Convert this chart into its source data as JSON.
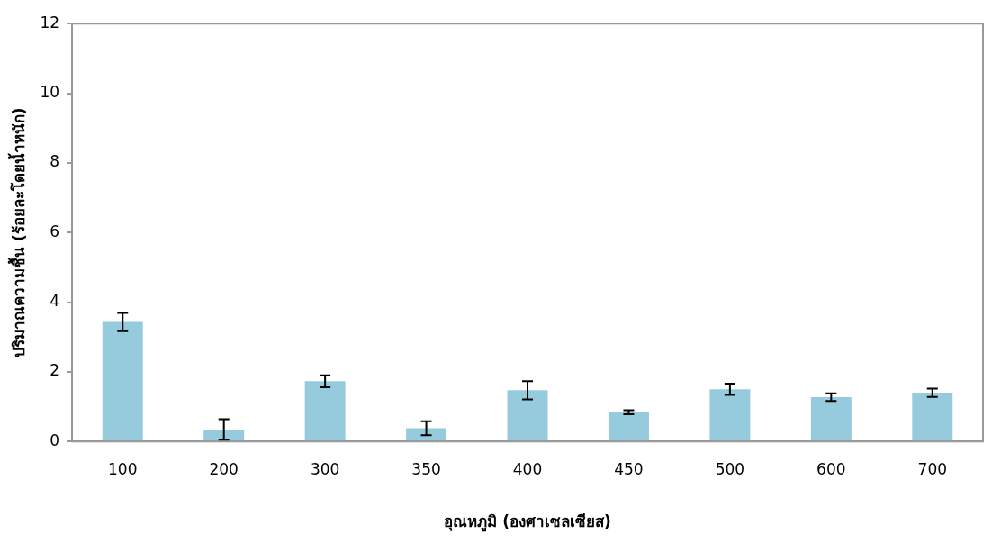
{
  "chart_data": {
    "type": "bar",
    "xlabel": "อุณหภูมิ (องศาเซลเซียส)",
    "ylabel": "ปริมาณความชื้น (ร้อยละโดยน้ำหนัก)",
    "categories": [
      "100",
      "200",
      "300",
      "350",
      "400",
      "450",
      "500",
      "600",
      "700"
    ],
    "values": [
      3.43,
      0.34,
      1.73,
      0.38,
      1.47,
      0.84,
      1.5,
      1.27,
      1.4
    ],
    "errors": [
      0.26,
      0.3,
      0.17,
      0.2,
      0.26,
      0.06,
      0.16,
      0.11,
      0.12
    ],
    "color": "#96cbdd",
    "ylim": [
      0,
      12
    ],
    "yticks": [
      0,
      2,
      4,
      6,
      8,
      10,
      12
    ],
    "grid": false,
    "legend": false
  }
}
